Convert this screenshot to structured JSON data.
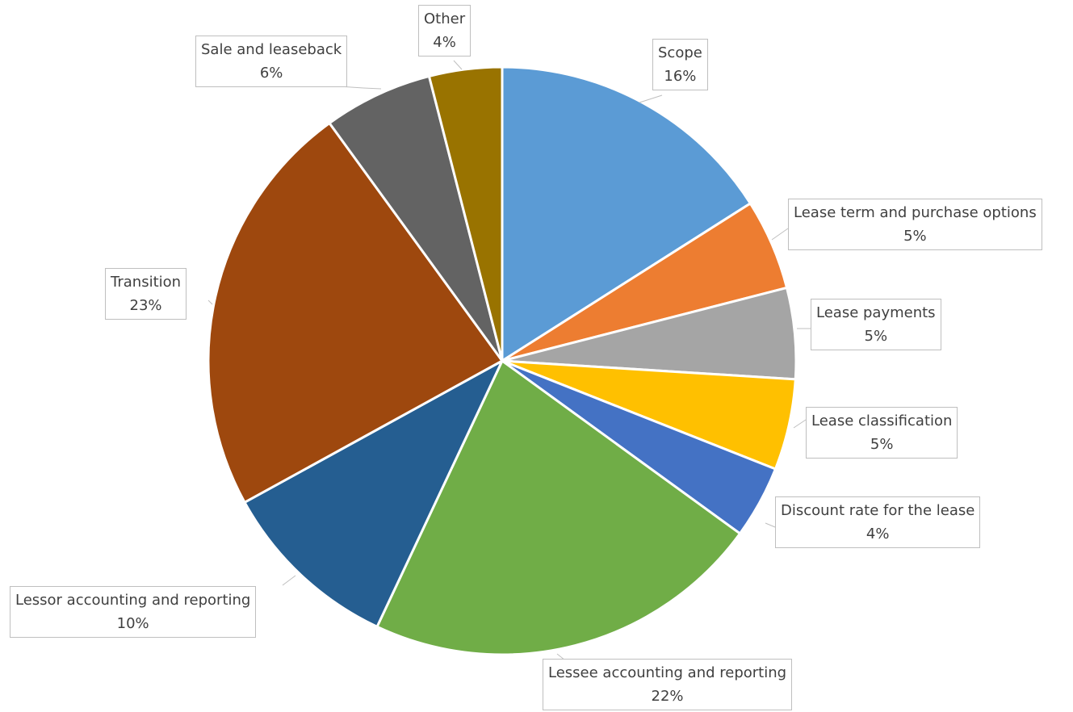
{
  "chart_data": {
    "type": "pie",
    "title": "",
    "slices": [
      {
        "label": "Scope",
        "value": 16,
        "value_label": "16%",
        "color": "#5b9bd5"
      },
      {
        "label": "Lease term and purchase options",
        "value": 5,
        "value_label": "5%",
        "color": "#ed7d31"
      },
      {
        "label": "Lease payments",
        "value": 5,
        "value_label": "5%",
        "color": "#a5a5a5"
      },
      {
        "label": "Lease classification",
        "value": 5,
        "value_label": "5%",
        "color": "#ffc000"
      },
      {
        "label": "Discount rate for the lease",
        "value": 4,
        "value_label": "4%",
        "color": "#4472c4"
      },
      {
        "label": "Lessee accounting and reporting",
        "value": 22,
        "value_label": "22%",
        "color": "#70ad47"
      },
      {
        "label": "Lessor accounting and reporting",
        "value": 10,
        "value_label": "10%",
        "color": "#255e91"
      },
      {
        "label": "Transition",
        "value": 23,
        "value_label": "23%",
        "color": "#9e480e"
      },
      {
        "label": "Sale and leaseback",
        "value": 6,
        "value_label": "6%",
        "color": "#636363"
      },
      {
        "label": "Other",
        "value": 4,
        "value_label": "4%",
        "color": "#997300"
      }
    ],
    "legend": "none",
    "data_labels": "callout"
  }
}
